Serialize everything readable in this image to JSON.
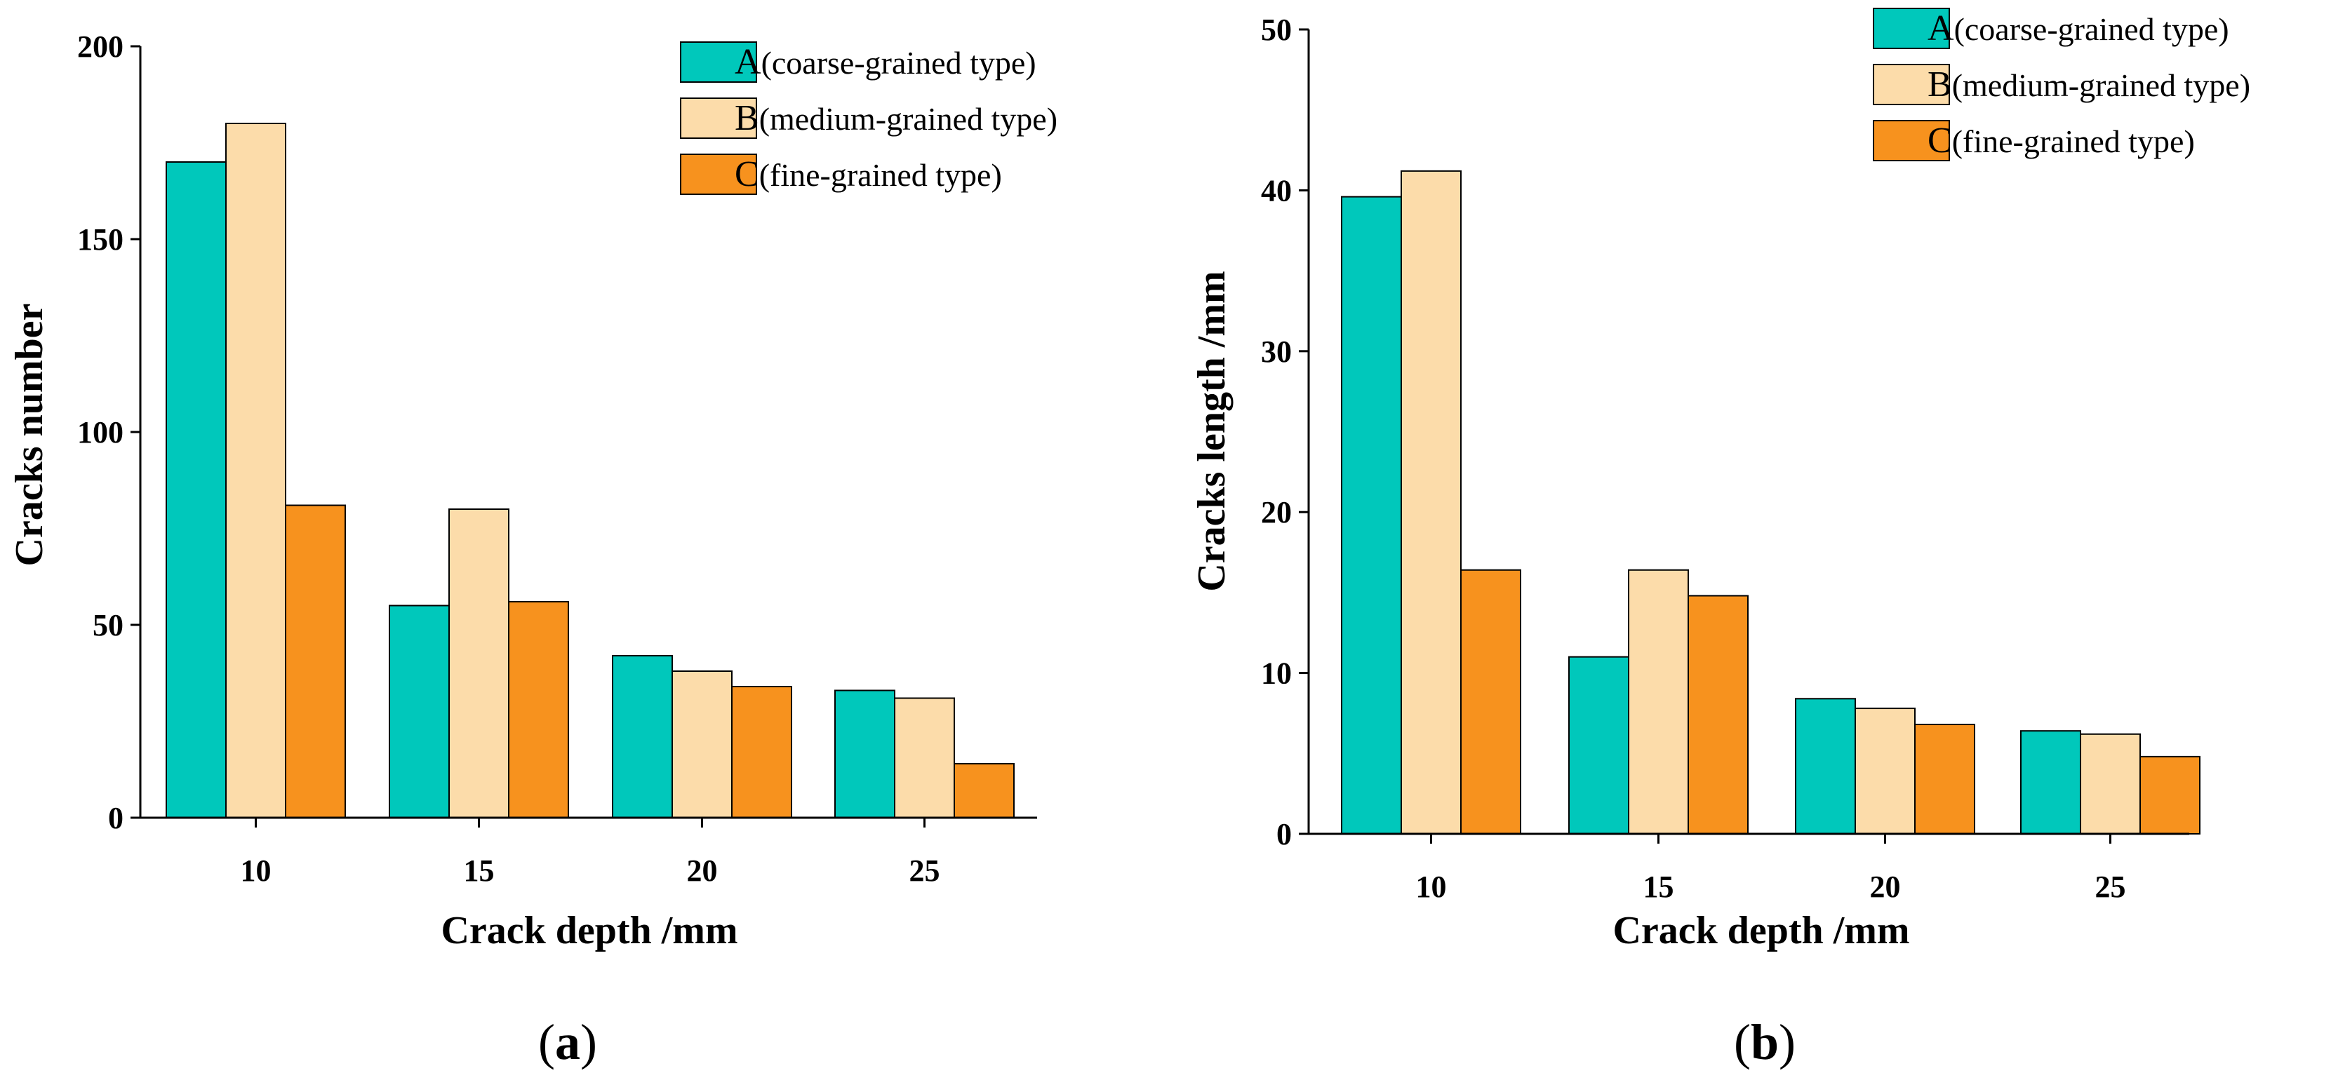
{
  "colors": {
    "A": "#00c8bb",
    "B": "#fcdcaa",
    "C": "#f7921e",
    "axis": "#000000"
  },
  "legend": [
    {
      "key": "A",
      "letter": "A",
      "text": "(coarse-grained type)"
    },
    {
      "key": "B",
      "letter": "B",
      "text": "(medium-grained type)"
    },
    {
      "key": "C",
      "letter": "C",
      "text": "(fine-grained type)"
    }
  ],
  "chart_data": [
    {
      "type": "bar",
      "panel_label": {
        "open": "(",
        "letter": "a",
        "close": ")"
      },
      "xlabel": "Crack depth /mm",
      "ylabel": "Cracks number",
      "categories": [
        "10",
        "15",
        "20",
        "25"
      ],
      "ylim": [
        0,
        200
      ],
      "yticks": [
        "0",
        "50",
        "100",
        "150",
        "200"
      ],
      "legend_position": "top-right",
      "series": [
        {
          "key": "A",
          "name": "A(coarse-grained type)",
          "values": [
            170,
            55,
            42,
            33
          ]
        },
        {
          "key": "B",
          "name": "B(medium-grained type)",
          "values": [
            180,
            80,
            38,
            31
          ]
        },
        {
          "key": "C",
          "name": "C(fine-grained type)",
          "values": [
            81,
            56,
            34,
            14
          ]
        }
      ]
    },
    {
      "type": "bar",
      "panel_label": {
        "open": "(",
        "letter": "b",
        "close": ")"
      },
      "xlabel": "Crack depth /mm",
      "ylabel": "Cracks length /mm",
      "categories": [
        "10",
        "15",
        "20",
        "25"
      ],
      "ylim": [
        0,
        50
      ],
      "yticks": [
        "0",
        "10",
        "20",
        "30",
        "40",
        "50"
      ],
      "legend_position": "top-right",
      "series": [
        {
          "key": "A",
          "name": "A(coarse-grained type)",
          "values": [
            39.6,
            11.0,
            8.4,
            6.4
          ]
        },
        {
          "key": "B",
          "name": "B(medium-grained type)",
          "values": [
            41.2,
            16.4,
            7.8,
            6.2
          ]
        },
        {
          "key": "C",
          "name": "C(fine-grained type)",
          "values": [
            16.4,
            14.8,
            6.8,
            4.8
          ]
        }
      ]
    }
  ]
}
